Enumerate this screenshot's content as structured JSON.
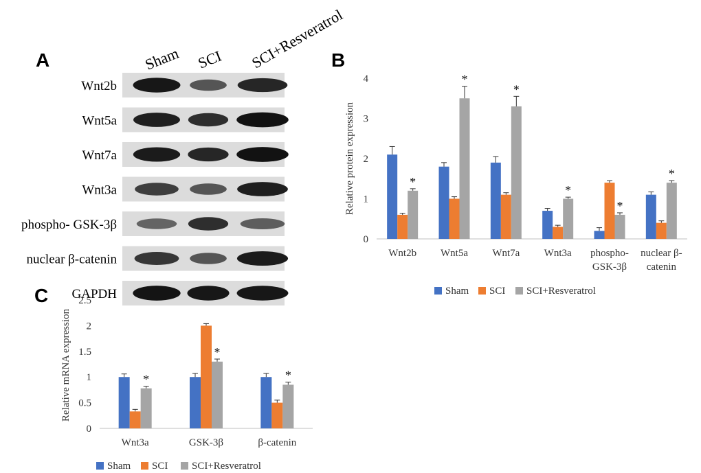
{
  "panels": {
    "a": "A",
    "b": "B",
    "c": "C"
  },
  "blot": {
    "lanes": [
      "Sham",
      "SCI",
      "SCI+Resveratrol"
    ],
    "rows": [
      {
        "label": "Wnt2b",
        "intensity": [
          0.95,
          0.55,
          0.85
        ]
      },
      {
        "label": "Wnt5a",
        "intensity": [
          0.9,
          0.8,
          0.98
        ]
      },
      {
        "label": "Wnt7a",
        "intensity": [
          0.92,
          0.85,
          0.98
        ]
      },
      {
        "label": "Wnt3a",
        "intensity": [
          0.7,
          0.55,
          0.9
        ]
      },
      {
        "label": "phospho- GSK-3β",
        "intensity": [
          0.45,
          0.8,
          0.5
        ]
      },
      {
        "label": "nuclear β-catenin",
        "intensity": [
          0.75,
          0.55,
          0.92
        ]
      },
      {
        "label": "GAPDH",
        "intensity": [
          0.97,
          0.95,
          0.95
        ]
      }
    ]
  },
  "colors": {
    "sham": "#4472C4",
    "sci": "#ED7D31",
    "resveratrol": "#A5A5A5"
  },
  "chart_data": [
    {
      "type": "bar",
      "panel": "B",
      "ylabel": "Relative protein expression",
      "ylim": [
        0,
        4
      ],
      "yticks": [
        "0",
        "1",
        "2",
        "3",
        "4"
      ],
      "categories": [
        [
          "Wnt2b"
        ],
        [
          "Wnt5a"
        ],
        [
          "Wnt7a"
        ],
        [
          "Wnt3a"
        ],
        [
          "phospho-",
          "GSK-3β"
        ],
        [
          "nuclear β-",
          "catenin"
        ]
      ],
      "series": [
        {
          "name": "Sham",
          "values": [
            2.1,
            1.8,
            1.9,
            0.7,
            0.2,
            1.1
          ],
          "errors": [
            0.2,
            0.1,
            0.15,
            0.06,
            0.08,
            0.07
          ]
        },
        {
          "name": "SCI",
          "values": [
            0.6,
            1.0,
            1.1,
            0.3,
            1.4,
            0.4
          ],
          "errors": [
            0.04,
            0.05,
            0.05,
            0.04,
            0.05,
            0.05
          ]
        },
        {
          "name": "SCI+Resveratrol",
          "values": [
            1.2,
            3.5,
            3.3,
            1.0,
            0.6,
            1.4
          ],
          "errors": [
            0.05,
            0.3,
            0.25,
            0.04,
            0.05,
            0.05
          ]
        }
      ],
      "significance": [
        "*",
        "*",
        "*",
        "*",
        "*",
        "*"
      ],
      "legend": "bottom"
    },
    {
      "type": "bar",
      "panel": "C",
      "ylabel": "Relative mRNA expression",
      "ylim": [
        0,
        2.5
      ],
      "yticks": [
        "0",
        "0.5",
        "1",
        "1.5",
        "2",
        "2.5"
      ],
      "categories": [
        [
          "Wnt3a"
        ],
        [
          "GSK-3β"
        ],
        [
          "β-catenin"
        ]
      ],
      "series": [
        {
          "name": "Sham",
          "values": [
            1.0,
            1.0,
            1.0
          ],
          "errors": [
            0.06,
            0.07,
            0.07
          ]
        },
        {
          "name": "SCI",
          "values": [
            0.33,
            2.0,
            0.5
          ],
          "errors": [
            0.04,
            0.04,
            0.05
          ]
        },
        {
          "name": "SCI+Resveratrol",
          "values": [
            0.78,
            1.3,
            0.85
          ],
          "errors": [
            0.04,
            0.05,
            0.05
          ]
        }
      ],
      "significance": [
        "*",
        "*",
        "*"
      ],
      "legend": "bottom"
    }
  ]
}
